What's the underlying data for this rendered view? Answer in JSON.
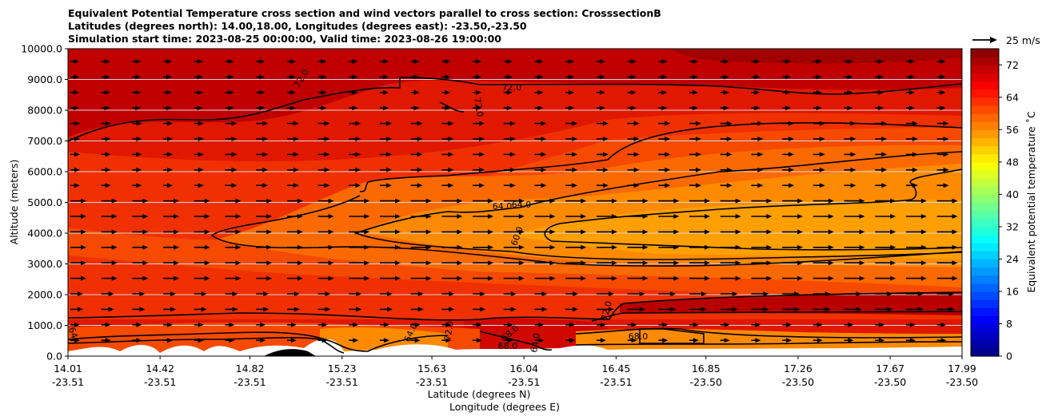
{
  "title_lines": [
    "Equivalent Potential Temperature cross section and wind vectors parallel to cross section: CrosssectionB",
    "Latitudes (degrees north): 14.00,18.00, Longitudes (degrees east): -23.50,-23.50",
    "Simulation start time: 2023-08-25 00:00:00, Valid time: 2023-08-26 19:00:00"
  ],
  "chart_data": {
    "type": "heatmap",
    "ylabel": "Altitude (meters)",
    "xlabel_primary": "Latitude (degrees N)",
    "xlabel_secondary": "Longitude (degrees E)",
    "ylim": [
      0,
      10000
    ],
    "y_ticks": [
      "0.0",
      "1000.0",
      "2000.0",
      "3000.0",
      "4000.0",
      "5000.0",
      "6000.0",
      "7000.0",
      "8000.0",
      "9000.0",
      "10000.0"
    ],
    "x_ticks": [
      {
        "lat": "14.01",
        "lon": "-23.51"
      },
      {
        "lat": "14.42",
        "lon": "-23.51"
      },
      {
        "lat": "14.82",
        "lon": "-23.51"
      },
      {
        "lat": "15.23",
        "lon": "-23.51"
      },
      {
        "lat": "15.63",
        "lon": "-23.51"
      },
      {
        "lat": "16.04",
        "lon": "-23.51"
      },
      {
        "lat": "16.45",
        "lon": "-23.51"
      },
      {
        "lat": "16.85",
        "lon": "-23.50"
      },
      {
        "lat": "17.26",
        "lon": "-23.50"
      },
      {
        "lat": "17.67",
        "lon": "-23.50"
      },
      {
        "lat": "17.99",
        "lon": "-23.50"
      }
    ],
    "grid": "horizontal lines only",
    "colorbar": {
      "label": "Equivalent potential temperature $^\\circ$C",
      "min": 0,
      "max": 76,
      "step": 2,
      "ticks": [
        "0",
        "8",
        "16",
        "24",
        "32",
        "40",
        "48",
        "56",
        "64",
        "72"
      ]
    },
    "contour_labels": [
      "72.0",
      "72.0",
      "72.0",
      "64.0",
      "64.0",
      "60.0",
      "64.0",
      "72.0",
      "68.0",
      "68.0",
      "64.0",
      "68.0",
      "72.0",
      "64"
    ],
    "wind_vectors": {
      "direction": "parallel to cross section, pointing right",
      "key_label": "25 m/s"
    }
  }
}
